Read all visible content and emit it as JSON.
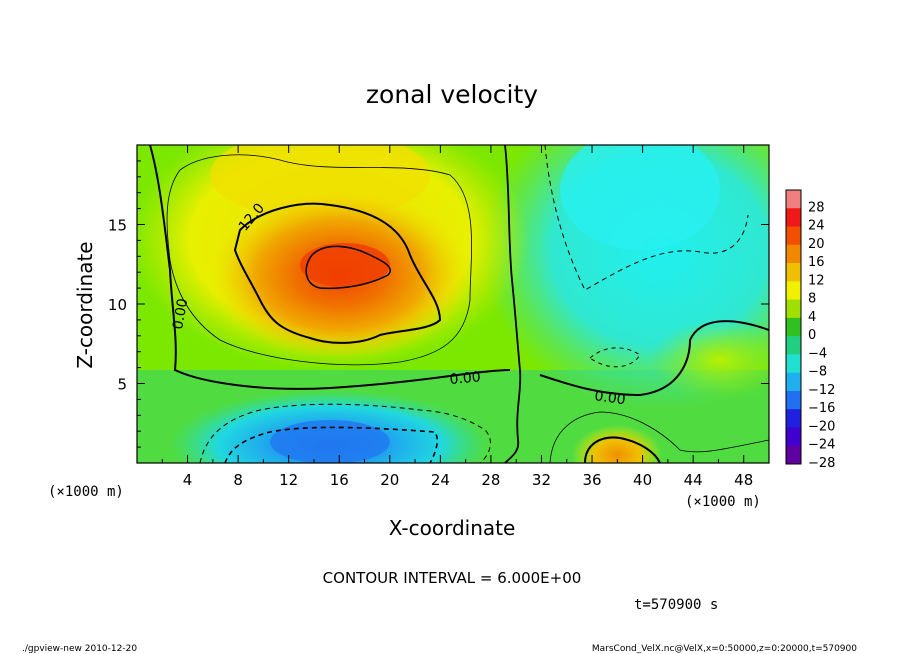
{
  "chart_data": {
    "type": "heatmap",
    "title": "zonal velocity",
    "xlabel": "X-coordinate",
    "ylabel": "Z-coordinate",
    "x_unit": "(×1000 m)",
    "y_unit": "(×1000 m)",
    "xlim": [
      0,
      50
    ],
    "ylim": [
      0,
      20
    ],
    "x_ticks": [
      "4",
      "8",
      "12",
      "16",
      "20",
      "24",
      "28",
      "32",
      "36",
      "40",
      "44",
      "48"
    ],
    "x_tick_values": [
      4,
      8,
      12,
      16,
      20,
      24,
      28,
      32,
      36,
      40,
      44,
      48
    ],
    "y_ticks": [
      "5",
      "10",
      "15"
    ],
    "y_tick_values": [
      5,
      10,
      15
    ],
    "colorbar": {
      "levels": [
        "28",
        "24",
        "20",
        "16",
        "12",
        "8",
        "4",
        "0",
        "−4",
        "−8",
        "−12",
        "−16",
        "−20",
        "−24",
        "−28"
      ],
      "colors": [
        "#f08080",
        "#f01818",
        "#f05000",
        "#f08800",
        "#f0c000",
        "#f0f000",
        "#a0e000",
        "#30c020",
        "#20d080",
        "#20e0d0",
        "#20b0f0",
        "#2070f0",
        "#2020e0",
        "#4000d0",
        "#6000a0"
      ]
    },
    "contour_labels": [
      "12.0",
      "0.00",
      "0.00",
      "0.00"
    ],
    "contour_interval_text": "CONTOUR INTERVAL = 6.000E+00",
    "time_text": "t=570900 s",
    "footer_left": "./gpview-new  2010-12-20",
    "footer_right": "MarsCond_VelX.nc@VelX,x=0:50000,z=0:20000,t=570900",
    "regions": [
      {
        "name": "jet-core",
        "x": 16,
        "z": 12.5,
        "value": 20
      },
      {
        "name": "low-level-minimum",
        "x": 16,
        "z": 1.5,
        "value": -14
      },
      {
        "name": "upper-right-minimum",
        "x": 43,
        "z": 16,
        "value": -10
      },
      {
        "name": "lower-right-maximum",
        "x": 38,
        "z": 0.8,
        "value": 14
      }
    ]
  }
}
